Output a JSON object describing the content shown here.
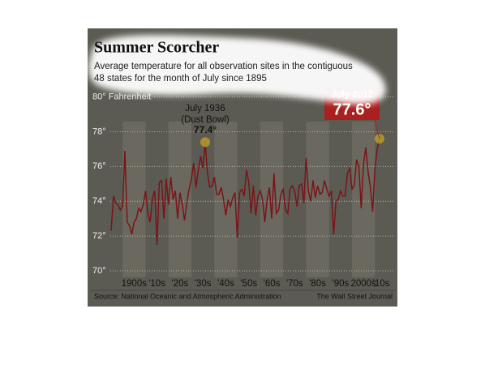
{
  "chart_data": {
    "type": "line",
    "title": "Summer Scorcher",
    "subtitle": [
      "Average temperature for all observation sites in the contiguous",
      "48 states for the month of July since 1895"
    ],
    "x": [
      1895,
      1896,
      1897,
      1898,
      1899,
      1900,
      1901,
      1902,
      1903,
      1904,
      1905,
      1906,
      1907,
      1908,
      1909,
      1910,
      1911,
      1912,
      1913,
      1914,
      1915,
      1916,
      1917,
      1918,
      1919,
      1920,
      1921,
      1922,
      1923,
      1924,
      1925,
      1926,
      1927,
      1928,
      1929,
      1930,
      1931,
      1932,
      1933,
      1934,
      1935,
      1936,
      1937,
      1938,
      1939,
      1940,
      1941,
      1942,
      1943,
      1944,
      1945,
      1946,
      1947,
      1948,
      1949,
      1950,
      1951,
      1952,
      1953,
      1954,
      1955,
      1956,
      1957,
      1958,
      1959,
      1960,
      1961,
      1962,
      1963,
      1964,
      1965,
      1966,
      1967,
      1968,
      1969,
      1970,
      1971,
      1972,
      1973,
      1974,
      1975,
      1976,
      1977,
      1978,
      1979,
      1980,
      1981,
      1982,
      1983,
      1984,
      1985,
      1986,
      1987,
      1988,
      1989,
      1990,
      1991,
      1992,
      1993,
      1994,
      1995,
      1996,
      1997,
      1998,
      1999,
      2000,
      2001,
      2002,
      2003,
      2004,
      2005,
      2006,
      2007,
      2008,
      2009,
      2010,
      2011,
      2012
    ],
    "series": [
      {
        "color": "#7a1418",
        "values": [
          72.3,
          74.3,
          73.9,
          73.8,
          73.5,
          73.7,
          76.9,
          72.8,
          72.6,
          72.1,
          72.8,
          73.0,
          73.6,
          73.4,
          73.8,
          74.6,
          73.3,
          72.8,
          74.2,
          74.6,
          71.5,
          75.1,
          75.2,
          73.0,
          75.3,
          73.8,
          75.4,
          74.1,
          74.6,
          73.0,
          74.5,
          73.8,
          72.9,
          73.9,
          74.7,
          75.3,
          76.2,
          74.8,
          75.8,
          76.6,
          75.9,
          77.4,
          75.6,
          74.8,
          74.9,
          75.4,
          74.4,
          74.4,
          74.8,
          74.1,
          73.2,
          74.1,
          73.7,
          74.2,
          74.5,
          71.9,
          74.5,
          74.7,
          74.3,
          75.8,
          75.1,
          73.3,
          74.9,
          73.2,
          74.3,
          74.6,
          74.1,
          72.8,
          74.1,
          74.8,
          73.0,
          75.6,
          73.3,
          73.5,
          74.4,
          74.7,
          73.5,
          73.3,
          74.7,
          74.9,
          74.6,
          73.7,
          74.9,
          75.0,
          73.9,
          76.5,
          74.6,
          74.0,
          75.2,
          74.2,
          74.9,
          74.4,
          74.5,
          75.2,
          74.7,
          74.3,
          74.6,
          72.1,
          74.0,
          74.1,
          74.6,
          74.3,
          74.3,
          75.6,
          75.9,
          74.7,
          74.9,
          76.4,
          76.0,
          73.6,
          76.1,
          77.1,
          75.7,
          74.8,
          73.4,
          75.9,
          77.0,
          77.6
        ]
      }
    ],
    "xlim": [
      1894,
      2013
    ],
    "xticks": [
      {
        "value": 1905,
        "label": "1900s"
      },
      {
        "value": 1915,
        "label": "'10s"
      },
      {
        "value": 1925,
        "label": "'20s"
      },
      {
        "value": 1935,
        "label": "'30s"
      },
      {
        "value": 1945,
        "label": "'40s"
      },
      {
        "value": 1955,
        "label": "'50s"
      },
      {
        "value": 1965,
        "label": "'60s"
      },
      {
        "value": 1975,
        "label": "'70s"
      },
      {
        "value": 1985,
        "label": "'80s"
      },
      {
        "value": 1995,
        "label": "'90s"
      },
      {
        "value": 2005,
        "label": "2000s"
      },
      {
        "value": 2015,
        "label": "'10s"
      }
    ],
    "ylim": [
      70,
      80.7
    ],
    "yticks": [
      {
        "value": 70,
        "label": "70°"
      },
      {
        "value": 72,
        "label": "72°"
      },
      {
        "value": 74,
        "label": "74°"
      },
      {
        "value": 76,
        "label": "76°"
      },
      {
        "value": 78,
        "label": "78°"
      },
      {
        "value": 80,
        "label": "80° Fahrenheit"
      }
    ],
    "grid": true,
    "annotations": [
      {
        "lines": [
          "July 1936",
          "(Dust Bowl)"
        ],
        "value": "77.4°"
      },
      {
        "lines": [
          "July 2012"
        ],
        "value": "77.6°"
      }
    ],
    "source": "Source: National Oceanic and Atmospheric Administration",
    "credit": "The Wall Street Journal"
  }
}
